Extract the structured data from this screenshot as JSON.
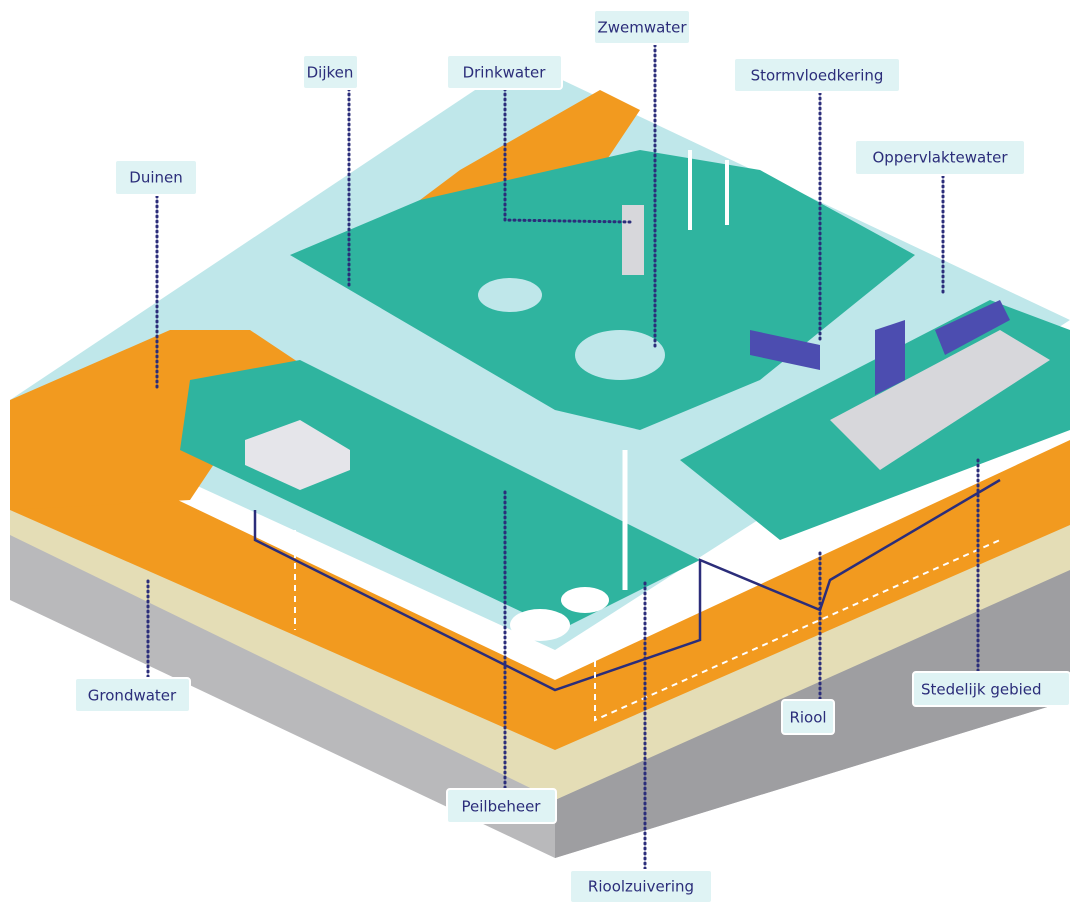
{
  "labels": {
    "zwemwater": "Zwemwater",
    "dijken": "Dijken",
    "drinkwater": "Drinkwater",
    "stormvloedkering": "Stormvloedkering",
    "oppervlaktewater": "Oppervlaktewater",
    "duinen": "Duinen",
    "grondwater": "Grondwater",
    "stedelijk_gebied": "Stedelijk gebied",
    "riool": "Riool",
    "peilbeheer": "Peilbeheer",
    "rioolzuivering": "Rioolzuivering"
  }
}
